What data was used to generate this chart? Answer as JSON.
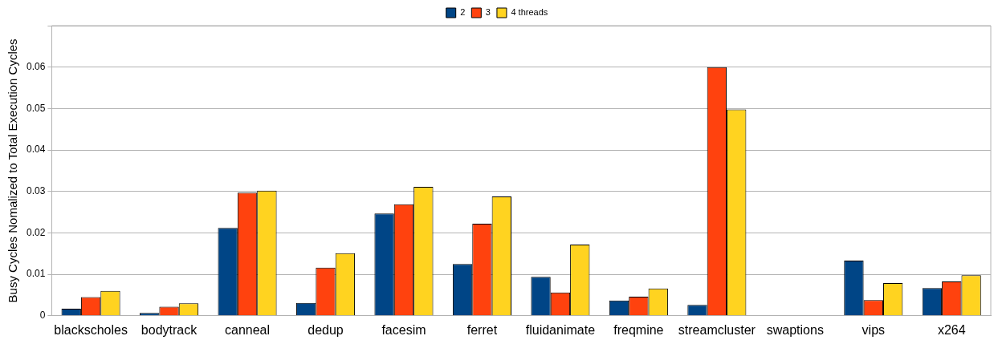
{
  "chart_data": {
    "type": "bar",
    "ylabel": "Busy Cycles Nomalized to Total Execution Cycles",
    "categories": [
      "blackscholes",
      "bodytrack",
      "canneal",
      "dedup",
      "facesim",
      "ferret",
      "fluidanimate",
      "freqmine",
      "streamcluster",
      "swaptions",
      "vips",
      "x264"
    ],
    "series": [
      {
        "name": "2",
        "color": "#004586",
        "values": [
          0.0017,
          0.0007,
          0.0212,
          0.0031,
          0.0247,
          0.0125,
          0.0094,
          0.0037,
          0.0026,
          null,
          0.0133,
          0.0067
        ]
      },
      {
        "name": "3",
        "color": "#ff420e",
        "values": [
          0.0045,
          0.0022,
          0.0297,
          0.0116,
          0.0269,
          0.0222,
          0.0056,
          0.0046,
          0.06,
          null,
          0.0038,
          0.0083
        ]
      },
      {
        "name": "4 threads",
        "color": "#ffd320",
        "values": [
          0.006,
          0.003,
          0.0302,
          0.0151,
          0.0311,
          0.0288,
          0.0172,
          0.0066,
          0.0498,
          null,
          0.0079,
          0.0098
        ]
      }
    ],
    "ylim": [
      0,
      0.07
    ],
    "yticks": [
      0,
      0.01,
      0.02,
      0.03,
      0.04,
      0.05,
      0.06,
      {
        "value": 0.07,
        "label": null
      }
    ],
    "grid": "y",
    "legend": "top"
  }
}
